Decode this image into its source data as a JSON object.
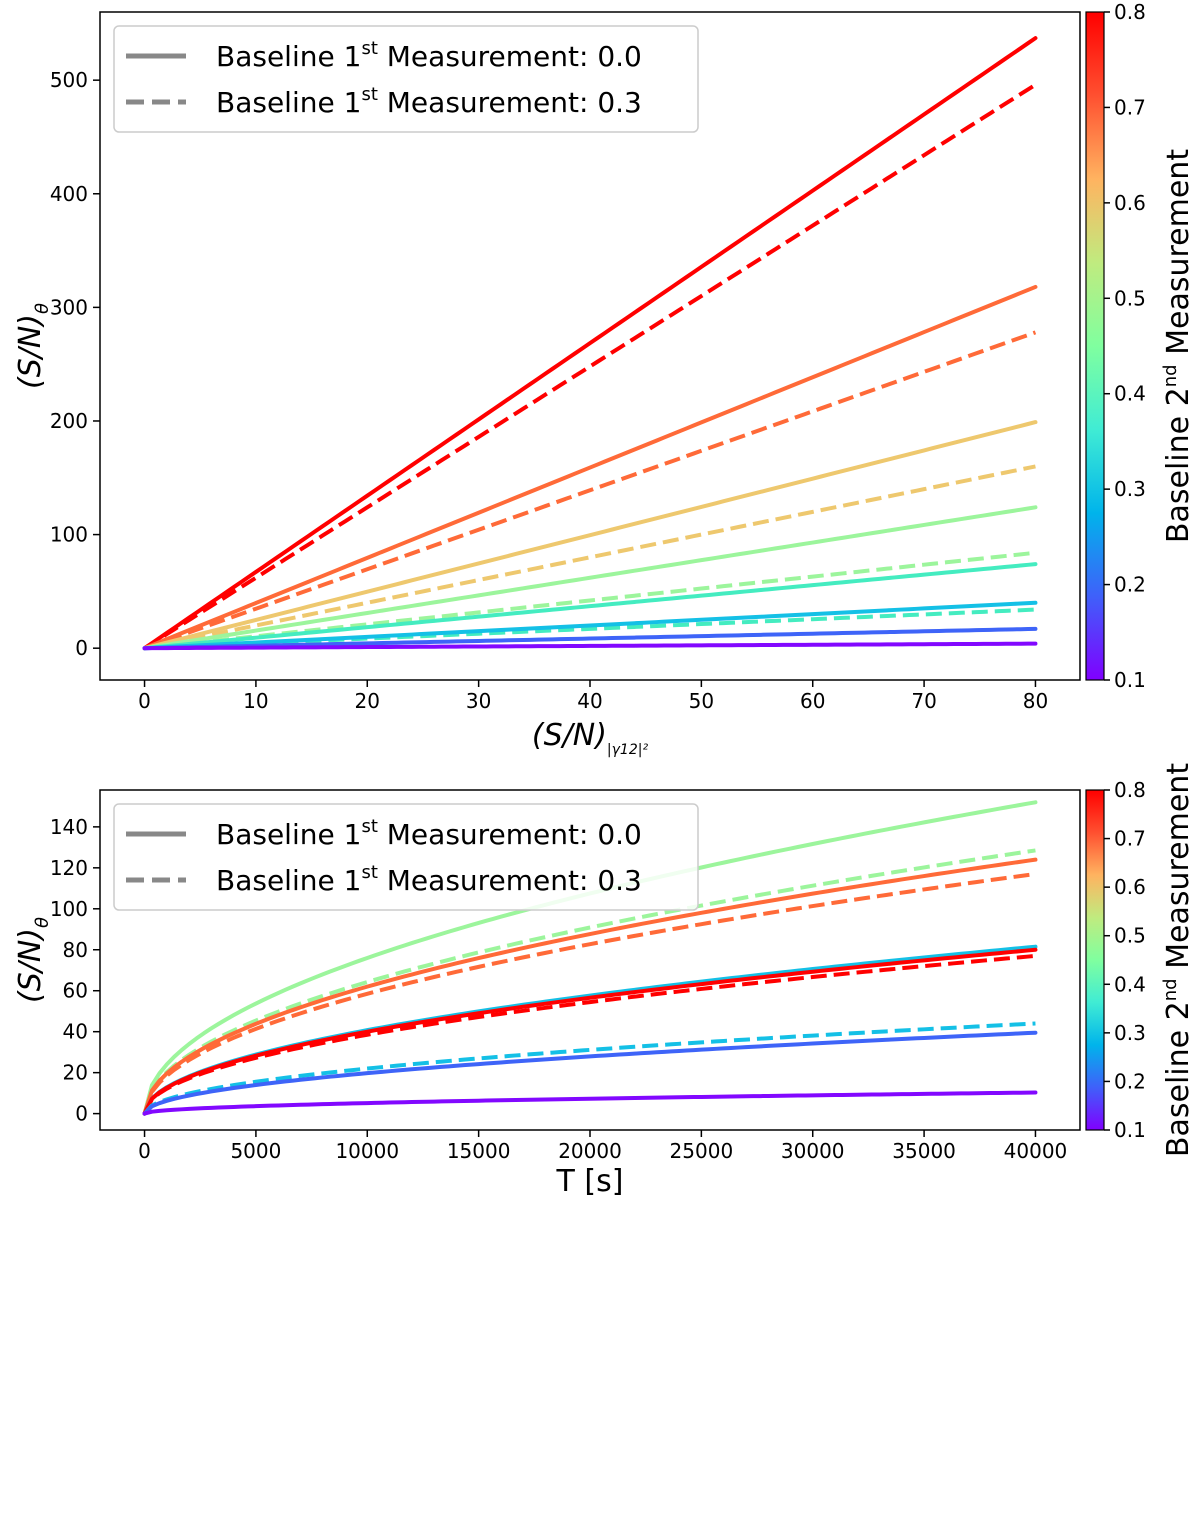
{
  "chart_data": [
    {
      "type": "line",
      "xlabel": "(S/N)",
      "xlabel_sub": "|γ12|²",
      "ylabel": "(S/N)",
      "ylabel_sub": "θ",
      "xlim": [
        -4,
        84
      ],
      "ylim": [
        -28,
        560
      ],
      "xticks": [
        0,
        10,
        20,
        30,
        40,
        50,
        60,
        70,
        80
      ],
      "yticks": [
        0,
        100,
        200,
        300,
        400,
        500
      ],
      "x_range": [
        0,
        80
      ],
      "curve_shape": "linear",
      "legend": {
        "position": "top-left",
        "entries": [
          {
            "prefix": "Baseline 1",
            "sup": "st",
            "suffix": " Measurement: 0.0",
            "style": "solid"
          },
          {
            "prefix": "Baseline 1",
            "sup": "st",
            "suffix": " Measurement: 0.3",
            "style": "dashed"
          }
        ]
      },
      "colorbar": {
        "label_prefix": "Baseline 2",
        "label_sup": "nd",
        "label_suffix": " Measurement",
        "min": 0.1,
        "max": 0.8,
        "ticks": [
          "0.1",
          "0.2",
          "0.3",
          "0.4",
          "0.5",
          "0.6",
          "0.7",
          "0.8"
        ],
        "stops": [
          "#8000ff",
          "#3f60fa",
          "#00b4eb",
          "#40ecd4",
          "#80ff9f",
          "#c0eb7f",
          "#ffb360",
          "#ff5030",
          "#ff0000"
        ]
      },
      "series": [
        {
          "baseline2": 0.8,
          "style": "solid",
          "color": "#ff0000",
          "end_value": 537
        },
        {
          "baseline2": 0.8,
          "style": "dashed",
          "color": "#ff0000",
          "end_value": 496
        },
        {
          "baseline2": 0.7,
          "style": "solid",
          "color": "#ff6a38",
          "end_value": 318
        },
        {
          "baseline2": 0.7,
          "style": "dashed",
          "color": "#ff6a38",
          "end_value": 278
        },
        {
          "baseline2": 0.6,
          "style": "solid",
          "color": "#eec86e",
          "end_value": 199
        },
        {
          "baseline2": 0.6,
          "style": "dashed",
          "color": "#eec86e",
          "end_value": 160
        },
        {
          "baseline2": 0.5,
          "style": "solid",
          "color": "#9cf59c",
          "end_value": 124
        },
        {
          "baseline2": 0.5,
          "style": "dashed",
          "color": "#9cf59c",
          "end_value": 84
        },
        {
          "baseline2": 0.4,
          "style": "solid",
          "color": "#44ecc0",
          "end_value": 74
        },
        {
          "baseline2": 0.4,
          "style": "dashed",
          "color": "#44ecc0",
          "end_value": 34
        },
        {
          "baseline2": 0.3,
          "style": "solid",
          "color": "#14c0e6",
          "end_value": 40
        },
        {
          "baseline2": 0.2,
          "style": "solid",
          "color": "#3e64f8",
          "end_value": 17
        },
        {
          "baseline2": 0.1,
          "style": "solid",
          "color": "#8208ff",
          "end_value": 4
        }
      ]
    },
    {
      "type": "line",
      "xlabel": "T [s]",
      "ylabel": "(S/N)",
      "ylabel_sub": "θ",
      "xlim": [
        -2000,
        42000
      ],
      "ylim": [
        -8,
        158
      ],
      "xticks": [
        0,
        5000,
        10000,
        15000,
        20000,
        25000,
        30000,
        35000,
        40000
      ],
      "yticks": [
        0,
        20,
        40,
        60,
        80,
        100,
        120,
        140
      ],
      "x_range": [
        0,
        40000
      ],
      "curve_shape": "sqrt",
      "legend": {
        "position": "top-left",
        "entries": [
          {
            "prefix": "Baseline 1",
            "sup": "st",
            "suffix": " Measurement: 0.0",
            "style": "solid"
          },
          {
            "prefix": "Baseline 1",
            "sup": "st",
            "suffix": " Measurement: 0.3",
            "style": "dashed"
          }
        ]
      },
      "colorbar": {
        "label_prefix": "Baseline 2",
        "label_sup": "nd",
        "label_suffix": " Measurement",
        "min": 0.1,
        "max": 0.8,
        "ticks": [
          "0.1",
          "0.2",
          "0.3",
          "0.4",
          "0.5",
          "0.6",
          "0.7",
          "0.8"
        ],
        "stops": [
          "#8000ff",
          "#3f60fa",
          "#00b4eb",
          "#40ecd4",
          "#80ff9f",
          "#c0eb7f",
          "#ffb360",
          "#ff5030",
          "#ff0000"
        ]
      },
      "series": [
        {
          "baseline2": 0.5,
          "style": "solid",
          "color": "#9cf59c",
          "end_value": 152
        },
        {
          "baseline2": 0.5,
          "style": "dashed",
          "color": "#9cf59c",
          "end_value": 128.5
        },
        {
          "baseline2": 0.7,
          "style": "solid",
          "color": "#ff6a38",
          "end_value": 124
        },
        {
          "baseline2": 0.7,
          "style": "dashed",
          "color": "#ff6a38",
          "end_value": 117
        },
        {
          "baseline2": 0.3,
          "style": "solid",
          "color": "#14c0e6",
          "end_value": 81.5
        },
        {
          "baseline2": 0.8,
          "style": "solid",
          "color": "#ff0000",
          "end_value": 80
        },
        {
          "baseline2": 0.8,
          "style": "dashed",
          "color": "#ff0000",
          "end_value": 77
        },
        {
          "baseline2": 0.3,
          "style": "dashed",
          "color": "#14c0e6",
          "end_value": 44
        },
        {
          "baseline2": 0.2,
          "style": "solid",
          "color": "#3e64f8",
          "end_value": 39.5
        },
        {
          "baseline2": 0.1,
          "style": "solid",
          "color": "#8208ff",
          "end_value": 10.3
        }
      ]
    }
  ]
}
